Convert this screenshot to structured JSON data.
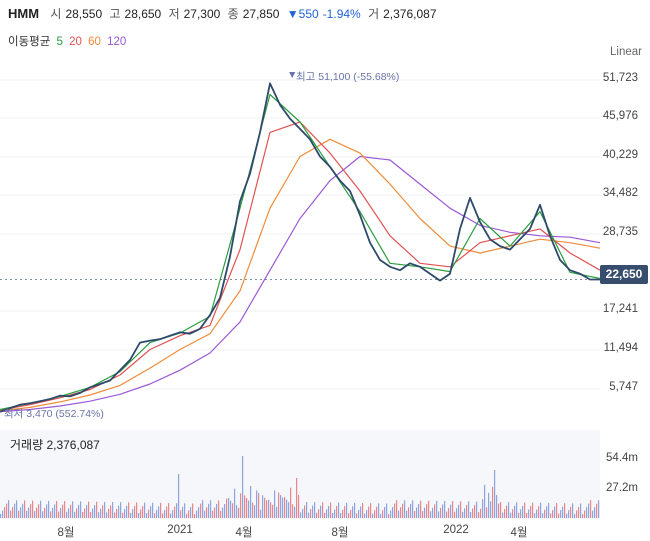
{
  "header": {
    "ticker": "HMM",
    "open_label": "시",
    "open": "28,550",
    "high_label": "고",
    "high": "28,650",
    "low_label": "저",
    "low": "27,300",
    "close_label": "종",
    "close": "27,850",
    "change_arrow": "▼",
    "change": "550",
    "change_pct": "-1.94%",
    "volume_label": "거",
    "volume": "2,376,087"
  },
  "ma_legend": {
    "label": "이동평균",
    "items": [
      {
        "period": "5",
        "color": "#2a9d3f"
      },
      {
        "period": "20",
        "color": "#e05252"
      },
      {
        "period": "60",
        "color": "#f08c3a"
      },
      {
        "period": "120",
        "color": "#9b59d6"
      }
    ]
  },
  "scale_mode": "Linear",
  "current_price": "22,650",
  "annotations": {
    "max": "최고 51,100 (-55.68%)",
    "max_marker": "▼",
    "min": "최저 3,470 (552.74%)"
  },
  "volume_panel": {
    "label": "거래량 2,376,087",
    "ticks": [
      "54.4m",
      "27.2m"
    ]
  },
  "chart_data": {
    "type": "line",
    "title": "HMM",
    "y_ticks": [
      "51,723",
      "45,976",
      "40,229",
      "34,482",
      "28,735",
      "22,650",
      "17,241",
      "11,494",
      "5,747"
    ],
    "x_ticks": [
      "8월",
      "2021",
      "4월",
      "8월",
      "2022",
      "4월"
    ],
    "ylim": [
      3000,
      54500
    ],
    "x_range": [
      "2020-06",
      "2022-06"
    ],
    "grid": true,
    "series": [
      {
        "key": "price",
        "color": "#2e4a6b",
        "x": [
          0,
          10,
          20,
          30,
          40,
          50,
          60,
          70,
          80,
          90,
          100,
          110,
          120,
          130,
          140,
          150,
          160,
          170,
          180,
          190,
          200,
          210,
          220,
          230,
          240,
          250,
          260,
          270,
          280,
          290,
          300,
          310,
          320,
          330,
          340,
          350,
          360,
          370,
          380,
          390,
          400,
          410,
          420,
          430,
          440,
          450,
          460,
          470,
          480,
          490,
          500,
          510,
          520,
          530,
          540,
          550,
          560,
          570,
          580,
          590,
          600
        ],
        "values": [
          3470,
          4000,
          4500,
          4700,
          5000,
          5300,
          5800,
          5700,
          6200,
          7000,
          7500,
          8000,
          9500,
          11000,
          13500,
          13800,
          14000,
          14500,
          15000,
          14800,
          15500,
          17500,
          20000,
          26000,
          34000,
          38000,
          44000,
          51100,
          48000,
          46000,
          44500,
          43000,
          40500,
          39000,
          37000,
          35500,
          32000,
          28000,
          25500,
          24500,
          24000,
          25000,
          24500,
          23500,
          22500,
          23500,
          30000,
          34500,
          31000,
          28500,
          27500,
          27000,
          28500,
          30000,
          33500,
          29000,
          25500,
          24000,
          23500,
          22650,
          22650
        ]
      },
      {
        "key": "MA5",
        "name": "5",
        "color": "#2a9d3f",
        "x": [
          0,
          30,
          60,
          90,
          120,
          150,
          180,
          210,
          240,
          270,
          300,
          330,
          360,
          390,
          420,
          450,
          480,
          510,
          540,
          570,
          600
        ],
        "values": [
          3800,
          4700,
          5700,
          7000,
          9300,
          13500,
          14900,
          17300,
          33000,
          49500,
          45500,
          39000,
          32500,
          25000,
          24500,
          23800,
          31500,
          27500,
          32500,
          23700,
          22800
        ]
      },
      {
        "key": "MA20",
        "name": "20",
        "color": "#e05252",
        "x": [
          0,
          30,
          60,
          90,
          120,
          150,
          180,
          210,
          240,
          270,
          300,
          330,
          360,
          390,
          420,
          450,
          480,
          510,
          540,
          570,
          600
        ],
        "values": [
          3700,
          4500,
          5500,
          6700,
          8800,
          12500,
          14500,
          16000,
          27000,
          44000,
          45500,
          41000,
          35500,
          29000,
          25000,
          24500,
          28000,
          29000,
          30000,
          26500,
          24000
        ]
      },
      {
        "key": "MA60",
        "name": "60",
        "color": "#f08c3a",
        "x": [
          0,
          30,
          60,
          90,
          120,
          150,
          180,
          210,
          240,
          270,
          300,
          330,
          360,
          390,
          420,
          450,
          480,
          510,
          540,
          570,
          600
        ],
        "values": [
          3600,
          4100,
          4900,
          5900,
          7300,
          9800,
          12500,
          14800,
          21000,
          33000,
          40500,
          43000,
          41000,
          36500,
          31500,
          27500,
          26500,
          27500,
          28500,
          28000,
          27200
        ]
      },
      {
        "key": "MA120",
        "name": "120",
        "color": "#9b59d6",
        "x": [
          0,
          30,
          60,
          90,
          120,
          150,
          180,
          210,
          240,
          270,
          300,
          330,
          360,
          390,
          420,
          450,
          480,
          510,
          540,
          570,
          600
        ],
        "values": [
          3500,
          3800,
          4300,
          5000,
          6000,
          7500,
          9500,
          12000,
          16500,
          24000,
          31500,
          37000,
          40500,
          40000,
          36500,
          33000,
          30500,
          29500,
          29000,
          28800,
          28000
        ]
      }
    ]
  }
}
